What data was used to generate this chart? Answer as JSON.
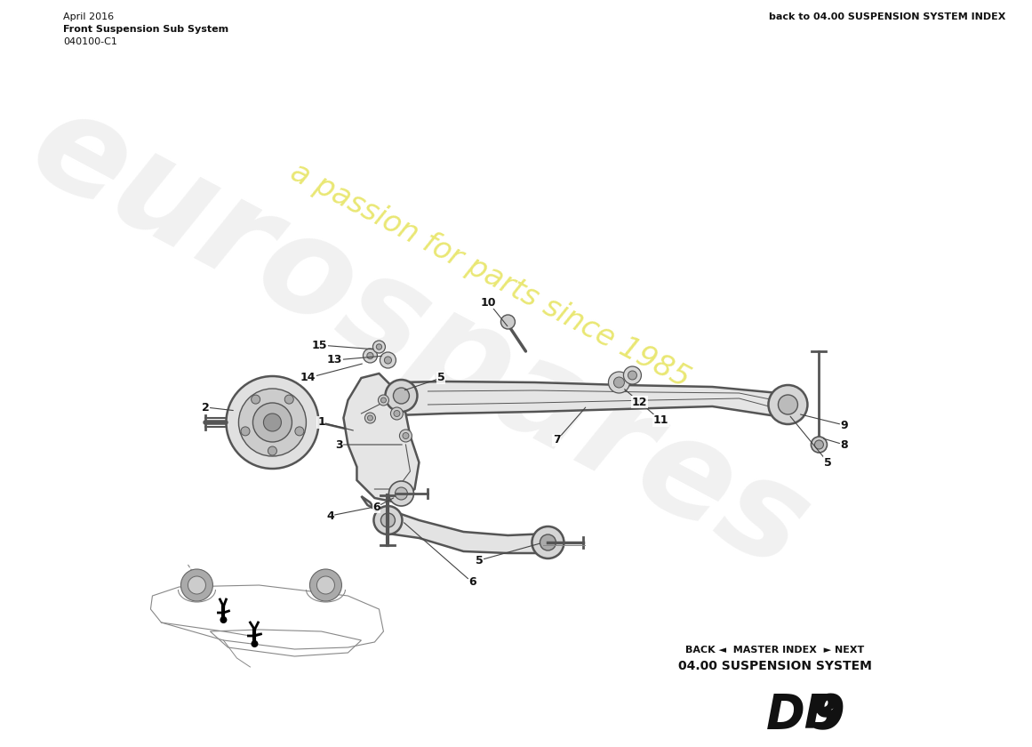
{
  "title_main": "DB 9",
  "title_sub": "04.00 SUSPENSION SYSTEM",
  "title_nav": "BACK ◄  MASTER INDEX  ► NEXT",
  "part_number": "040100-C1",
  "part_name": "Front Suspension Sub System",
  "date": "April 2016",
  "footer_right": "back to 04.00 SUSPENSION SYSTEM INDEX",
  "bg_color": "#ffffff",
  "watermark_text1": "a passion for parts since 1985",
  "watermark_text2": "eurospares",
  "line_color": "#555555",
  "fill_color": "#e8e8e8",
  "fill_color2": "#d0d0d0"
}
